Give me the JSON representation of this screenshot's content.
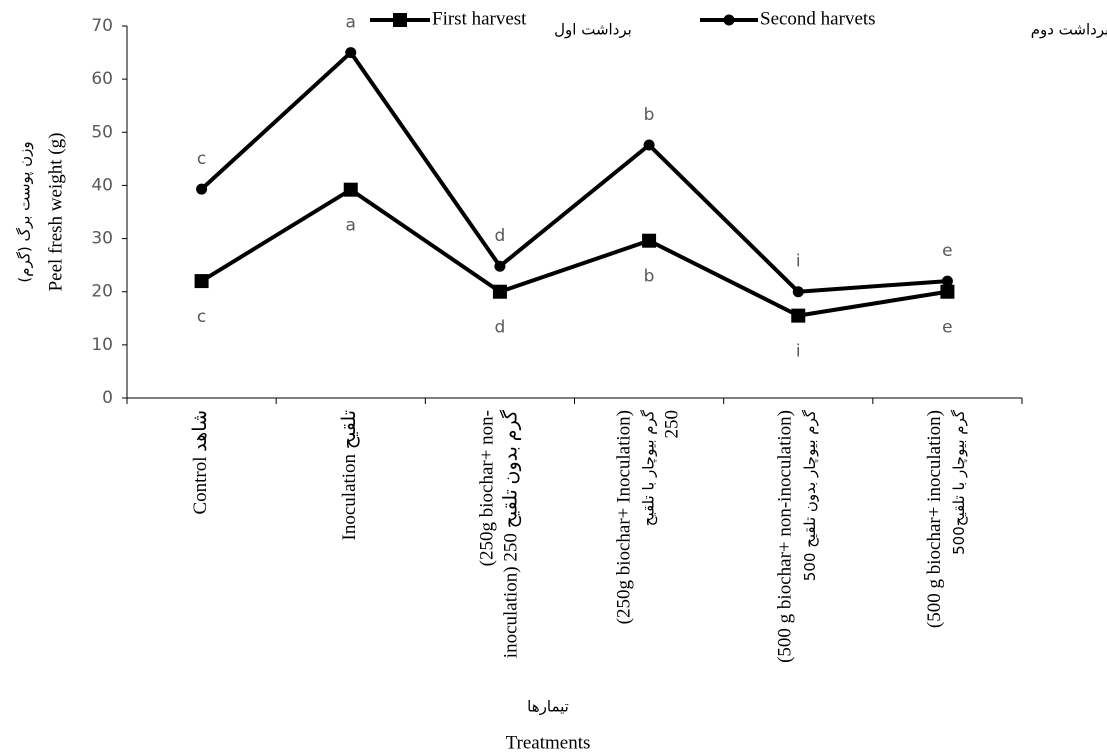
{
  "chart_data": {
    "type": "line",
    "y_label": "Peel fresh weight (g)",
    "y_label_fa": "وزن پوست برگ (گرم)",
    "x_label": "Treatments",
    "x_label_fa": "تیمارها",
    "categories": [
      [
        "Control    شاهد"
      ],
      [
        "Inoculation  تلقیح"
      ],
      [
        "(250g biochar+ non-",
        "inoculation) 250 گرم بدون تلقیح"
      ],
      [
        "(250g biochar+ Inoculation)",
        "گرم بیوچار با تلقیح",
        "250"
      ],
      [
        "(500 g biochar+ non-inoculation)",
        "گرم بیوچار بدون تلقیح 500"
      ],
      [
        "(500 g biochar+ inoculation)",
        "گرم بیوچار با تلقیح500"
      ]
    ],
    "series": [
      {
        "name": "First harvest",
        "name_fa": "برداشت اول",
        "color": "#000000",
        "marker": "square",
        "values": [
          22,
          39.2,
          20,
          29.6,
          15.5,
          20
        ],
        "letters": [
          "c",
          "a",
          "d",
          "b",
          "i",
          "e"
        ]
      },
      {
        "name": "Second harvets",
        "name_fa": "برداشت دوم",
        "color": "#000000",
        "marker": "circle",
        "values": [
          39.3,
          65,
          24.8,
          47.6,
          20,
          22
        ],
        "letters": [
          "c",
          "a",
          "d",
          "b",
          "i",
          "e"
        ]
      }
    ],
    "ylim": [
      0,
      70
    ],
    "yticks": [
      0,
      10,
      20,
      30,
      40,
      50,
      60,
      70
    ]
  }
}
